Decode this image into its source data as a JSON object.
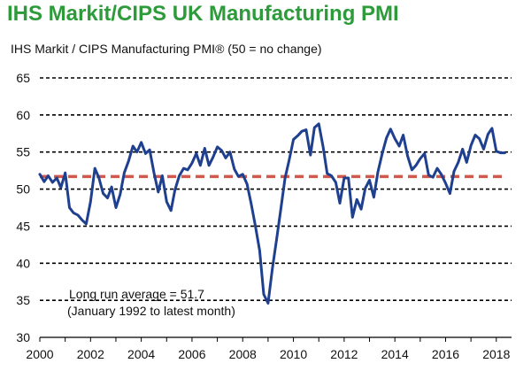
{
  "title": "IHS Markit/CIPS UK Manufacturing PMI",
  "subtitle": "IHS Markit / CIPS Manufacturing PMI® (50 = no change)",
  "annotation": {
    "line1": "Long run average = 51.7",
    "line2": "(January 1992 to latest month)"
  },
  "chart_data": {
    "type": "line",
    "title": "IHS Markit/CIPS UK Manufacturing PMI",
    "ylabel": "IHS Markit / CIPS Manufacturing PMI® (50 = no change)",
    "xlabel": "",
    "xlim": [
      2000,
      2018.6
    ],
    "ylim": [
      30,
      65
    ],
    "y_ticks": [
      30,
      35,
      40,
      45,
      50,
      55,
      60,
      65
    ],
    "x_ticks": [
      2000,
      2002,
      2004,
      2006,
      2008,
      2010,
      2012,
      2014,
      2016,
      2018
    ],
    "grid": "horizontal dashed",
    "series": [
      {
        "name": "",
        "color": "#1f3f8f",
        "x": [
          2000.0,
          2000.17,
          2000.33,
          2000.5,
          2000.67,
          2000.83,
          2001.0,
          2001.17,
          2001.33,
          2001.5,
          2001.67,
          2001.83,
          2002.0,
          2002.17,
          2002.33,
          2002.5,
          2002.67,
          2002.83,
          2003.0,
          2003.17,
          2003.33,
          2003.5,
          2003.67,
          2003.83,
          2004.0,
          2004.17,
          2004.33,
          2004.5,
          2004.67,
          2004.83,
          2005.0,
          2005.17,
          2005.33,
          2005.5,
          2005.67,
          2005.83,
          2006.0,
          2006.17,
          2006.33,
          2006.5,
          2006.67,
          2006.83,
          2007.0,
          2007.17,
          2007.33,
          2007.5,
          2007.67,
          2007.83,
          2008.0,
          2008.17,
          2008.33,
          2008.5,
          2008.67,
          2008.83,
          2009.0,
          2009.17,
          2009.33,
          2009.5,
          2009.67,
          2009.83,
          2010.0,
          2010.17,
          2010.33,
          2010.5,
          2010.67,
          2010.83,
          2011.0,
          2011.17,
          2011.33,
          2011.5,
          2011.67,
          2011.83,
          2012.0,
          2012.17,
          2012.33,
          2012.5,
          2012.67,
          2012.83,
          2013.0,
          2013.17,
          2013.33,
          2013.5,
          2013.67,
          2013.83,
          2014.0,
          2014.17,
          2014.33,
          2014.5,
          2014.67,
          2014.83,
          2015.0,
          2015.17,
          2015.33,
          2015.5,
          2015.67,
          2015.83,
          2016.0,
          2016.17,
          2016.33,
          2016.5,
          2016.67,
          2016.83,
          2017.0,
          2017.17,
          2017.33,
          2017.5,
          2017.67,
          2017.83,
          2018.0,
          2018.17,
          2018.33
        ],
        "values": [
          52.0,
          51.0,
          51.8,
          50.9,
          51.5,
          50.2,
          52.2,
          47.5,
          46.8,
          46.5,
          45.8,
          45.3,
          48.3,
          52.8,
          51.5,
          49.4,
          48.8,
          50.3,
          47.5,
          49.3,
          52.2,
          53.8,
          55.8,
          55.0,
          56.3,
          54.8,
          55.3,
          52.2,
          49.6,
          51.8,
          48.3,
          47.1,
          49.9,
          51.8,
          52.8,
          52.6,
          53.5,
          54.8,
          53.2,
          55.5,
          53.2,
          54.3,
          55.7,
          55.2,
          54.2,
          55.0,
          52.7,
          51.7,
          52.0,
          50.7,
          48.1,
          45.0,
          41.7,
          35.8,
          34.6,
          39.3,
          43.1,
          47.2,
          51.5,
          53.9,
          56.7,
          57.2,
          57.8,
          58.0,
          54.6,
          58.3,
          58.8,
          55.7,
          52.1,
          51.8,
          50.9,
          48.1,
          51.5,
          51.5,
          46.2,
          48.6,
          47.3,
          50.1,
          51.2,
          48.9,
          52.3,
          54.8,
          56.9,
          58.1,
          56.8,
          55.8,
          57.3,
          54.5,
          52.6,
          53.2,
          54.1,
          54.8,
          51.9,
          51.6,
          52.8,
          52.0,
          50.8,
          49.4,
          52.4,
          53.6,
          55.4,
          53.6,
          55.9,
          57.3,
          56.8,
          55.4,
          57.4,
          58.2,
          55.1,
          54.9,
          54.9
        ],
        "value_precision_note": ""
      },
      {
        "name": "",
        "color": "#d0584c",
        "x": [
          2000,
          2018.3
        ],
        "values": [
          51.7,
          51.7
        ]
      }
    ]
  }
}
